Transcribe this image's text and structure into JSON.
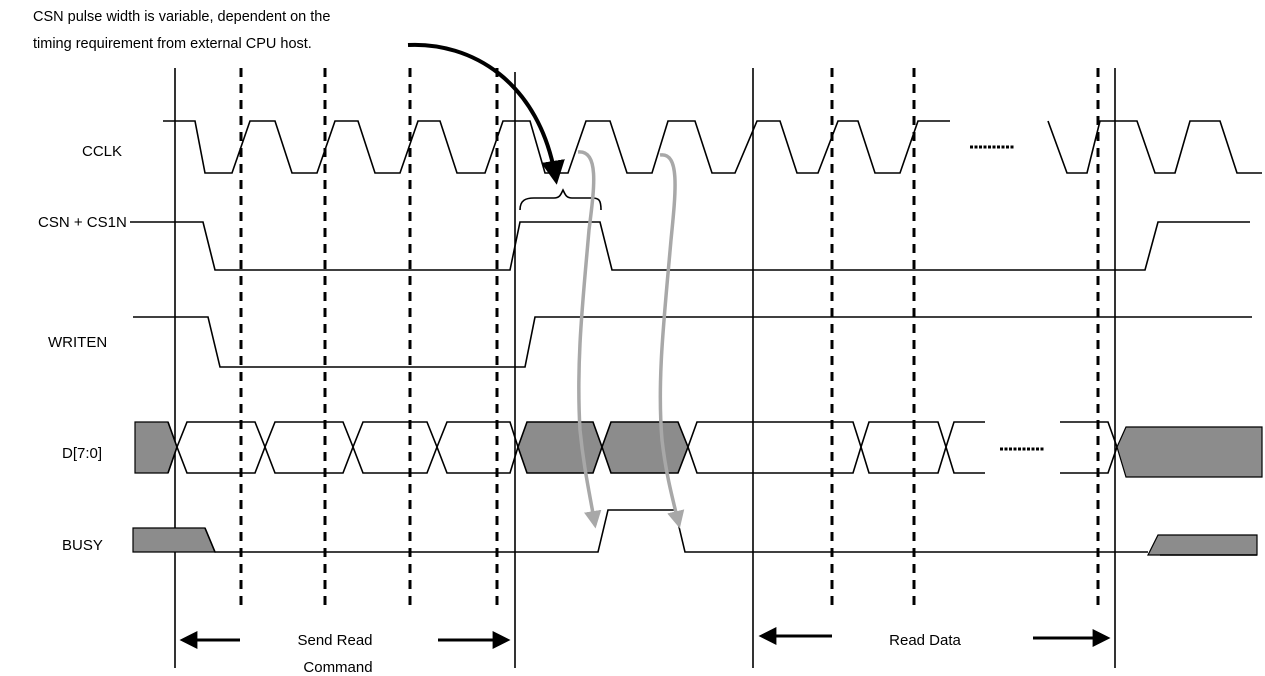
{
  "annotation": {
    "line1": "CSN pulse width is variable, dependent on the",
    "line2": "timing requirement from external CPU host."
  },
  "signals": {
    "cclk": "CCLK",
    "csn": "CSN + CS1N",
    "writen": "WRITEN",
    "data": "D[7:0]",
    "busy": "BUSY"
  },
  "phases": {
    "send_line1": "Send Read",
    "send_line2": "Command",
    "read": "Read Data"
  },
  "colors": {
    "line": "#000000",
    "data_fill": "#8c8c8c",
    "arrow_gray": "#a8a8a8"
  }
}
